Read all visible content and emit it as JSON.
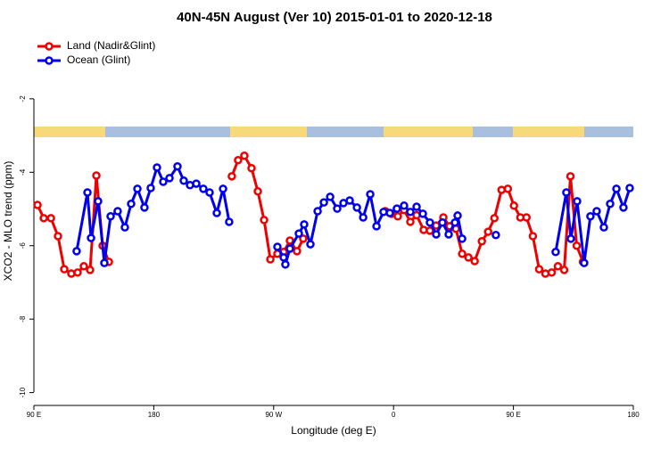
{
  "chart_data": {
    "type": "line",
    "title": "40N-45N August (Ver 10)   2015-01-01 to 2020-12-18",
    "x_label": "Longitude (deg E)",
    "y_label": "XCO2 - MLO trend (ppm)",
    "xlim": [
      90,
      540
    ],
    "xticks": [
      {
        "value": 90,
        "label": "90 E"
      },
      {
        "value": 180,
        "label": "180"
      },
      {
        "value": 270,
        "label": "90 W"
      },
      {
        "value": 360,
        "label": "0"
      },
      {
        "value": 450,
        "label": "90 E"
      },
      {
        "value": 540,
        "label": "180"
      }
    ],
    "ylim": [
      -10.35,
      -0.28
    ],
    "yticks": [
      -2,
      -4,
      -6,
      -8,
      -10
    ],
    "legend": "top-left",
    "series": [
      {
        "name": "Land (Nadir&Glint)",
        "color": "#ee0000",
        "x": [
          92.7,
          97.4,
          102.8,
          108.1,
          112.8,
          118.1,
          122.8,
          127.5,
          132.2,
          136.9,
          141.6,
          146.3,
          190,
          238.6,
          243.3,
          248.0,
          253.4,
          258.1,
          262.8,
          267.5,
          272.8,
          277.5,
          282.2,
          287.5,
          292.2,
          320,
          353.8,
          358.5,
          363.2,
          367.9,
          372.6,
          377.3,
          382.6,
          387.3,
          392.0,
          397.4,
          402.1,
          406.8,
          411.5,
          416.2,
          420.9,
          426.3,
          431.0,
          435.7,
          441.1,
          445.8,
          450.4,
          455.2,
          459.8,
          464.6,
          469.3,
          474.0,
          478.7,
          483.4,
          488.1,
          492.8,
          497.5,
          502.2
        ],
        "values": [
          -4.89,
          -5.25,
          -5.25,
          -5.74,
          -6.64,
          -6.76,
          -6.73,
          -6.56,
          -6.66,
          -4.09,
          -6.0,
          -6.44,
          null,
          -4.11,
          -3.67,
          -3.55,
          -3.89,
          -4.52,
          -5.3,
          -6.37,
          -6.22,
          -6.17,
          -5.86,
          -6.15,
          -5.81,
          null,
          -5.06,
          -5.13,
          -5.2,
          -5.03,
          -5.35,
          -5.17,
          -5.57,
          -5.59,
          -5.45,
          -5.23,
          -5.47,
          -5.54,
          -6.22,
          -6.32,
          -6.42,
          -5.88,
          -5.62,
          -5.25,
          -4.48,
          -4.45,
          -4.91,
          -5.23,
          -5.23,
          -5.74,
          -6.64,
          -6.76,
          -6.73,
          -6.56,
          -6.66,
          -4.11,
          -6.0,
          -6.44
        ]
      },
      {
        "name": "Ocean (Glint)",
        "color": "#0000ee",
        "x": [
          122.1,
          130.2,
          132.9,
          138.2,
          142.9,
          147.6,
          152.9,
          158.3,
          163.0,
          167.7,
          173.0,
          177.7,
          182.4,
          187.1,
          191.8,
          197.8,
          202.5,
          207.2,
          211.9,
          217.2,
          221.9,
          227.3,
          232.0,
          236.6,
          255,
          272.8,
          277.5,
          278.8,
          282.2,
          288.9,
          292.9,
          297.6,
          303.0,
          307.7,
          312.4,
          317.7,
          322.4,
          327.1,
          332.5,
          337.2,
          342.5,
          347.2,
          352.5,
          357.2,
          362.5,
          367.9,
          372.6,
          377.3,
          382.0,
          387.3,
          392.0,
          396.7,
          401.4,
          406.1,
          408.1,
          411.5,
          425,
          436.8,
          460,
          481.7,
          489.7,
          493.1,
          497.8,
          503.1,
          507.8,
          512.5,
          517.9,
          522.6,
          527.3,
          532.6,
          537.3
        ],
        "values": [
          -6.15,
          -4.55,
          -5.79,
          -4.79,
          -6.47,
          -5.2,
          -5.06,
          -5.5,
          -4.86,
          -4.45,
          -4.96,
          -4.43,
          -3.87,
          -4.26,
          -4.16,
          -3.84,
          -4.23,
          -4.35,
          -4.31,
          -4.45,
          -4.55,
          -5.11,
          -4.45,
          -5.35,
          null,
          -6.03,
          -6.32,
          -6.51,
          -6.08,
          -5.67,
          -5.42,
          -5.96,
          -5.06,
          -4.82,
          -4.67,
          -4.99,
          -4.84,
          -4.77,
          -4.96,
          -5.23,
          -4.6,
          -5.47,
          -5.08,
          -5.11,
          -4.99,
          -4.91,
          -5.08,
          -4.94,
          -5.13,
          -5.37,
          -5.69,
          -5.37,
          -5.69,
          -5.37,
          -5.18,
          -5.81,
          null,
          -5.71,
          null,
          -6.17,
          -4.55,
          -5.81,
          -4.79,
          -6.47,
          -5.2,
          -5.06,
          -5.5,
          -4.86,
          -4.45,
          -4.96,
          -4.43
        ]
      }
    ]
  }
}
